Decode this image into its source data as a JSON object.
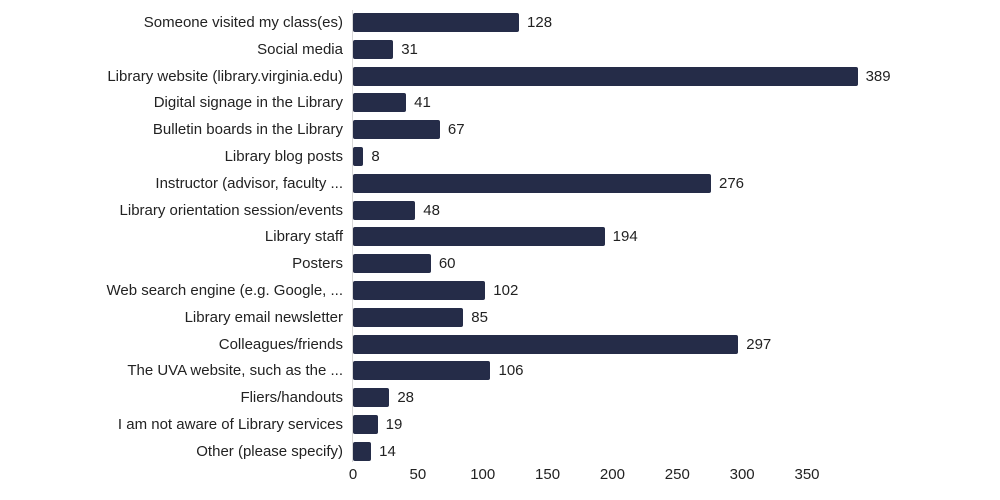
{
  "chart_data": {
    "type": "bar",
    "orientation": "horizontal",
    "title": "",
    "xlabel": "",
    "ylabel": "",
    "xlim": [
      0,
      389
    ],
    "xticks": [
      0,
      50,
      100,
      150,
      200,
      250,
      300,
      350
    ],
    "grid": false,
    "legend": null,
    "bar_color": "#252c48",
    "categories": [
      "Someone visited my class(es)",
      "Social media",
      "Library website (library.virginia.edu)",
      "Digital signage in the Library",
      "Bulletin boards in the Library",
      "Library blog posts",
      "Instructor (advisor, faculty ...",
      "Library orientation session/events",
      "Library staff",
      "Posters",
      "Web search engine (e.g. Google, ...",
      "Library email newsletter",
      "Colleagues/friends",
      "The UVA website, such as the ...",
      "Fliers/handouts",
      "I am not aware of Library services",
      "Other (please specify)"
    ],
    "values": [
      128,
      31,
      389,
      41,
      67,
      8,
      276,
      48,
      194,
      60,
      102,
      85,
      297,
      106,
      28,
      19,
      14
    ]
  }
}
